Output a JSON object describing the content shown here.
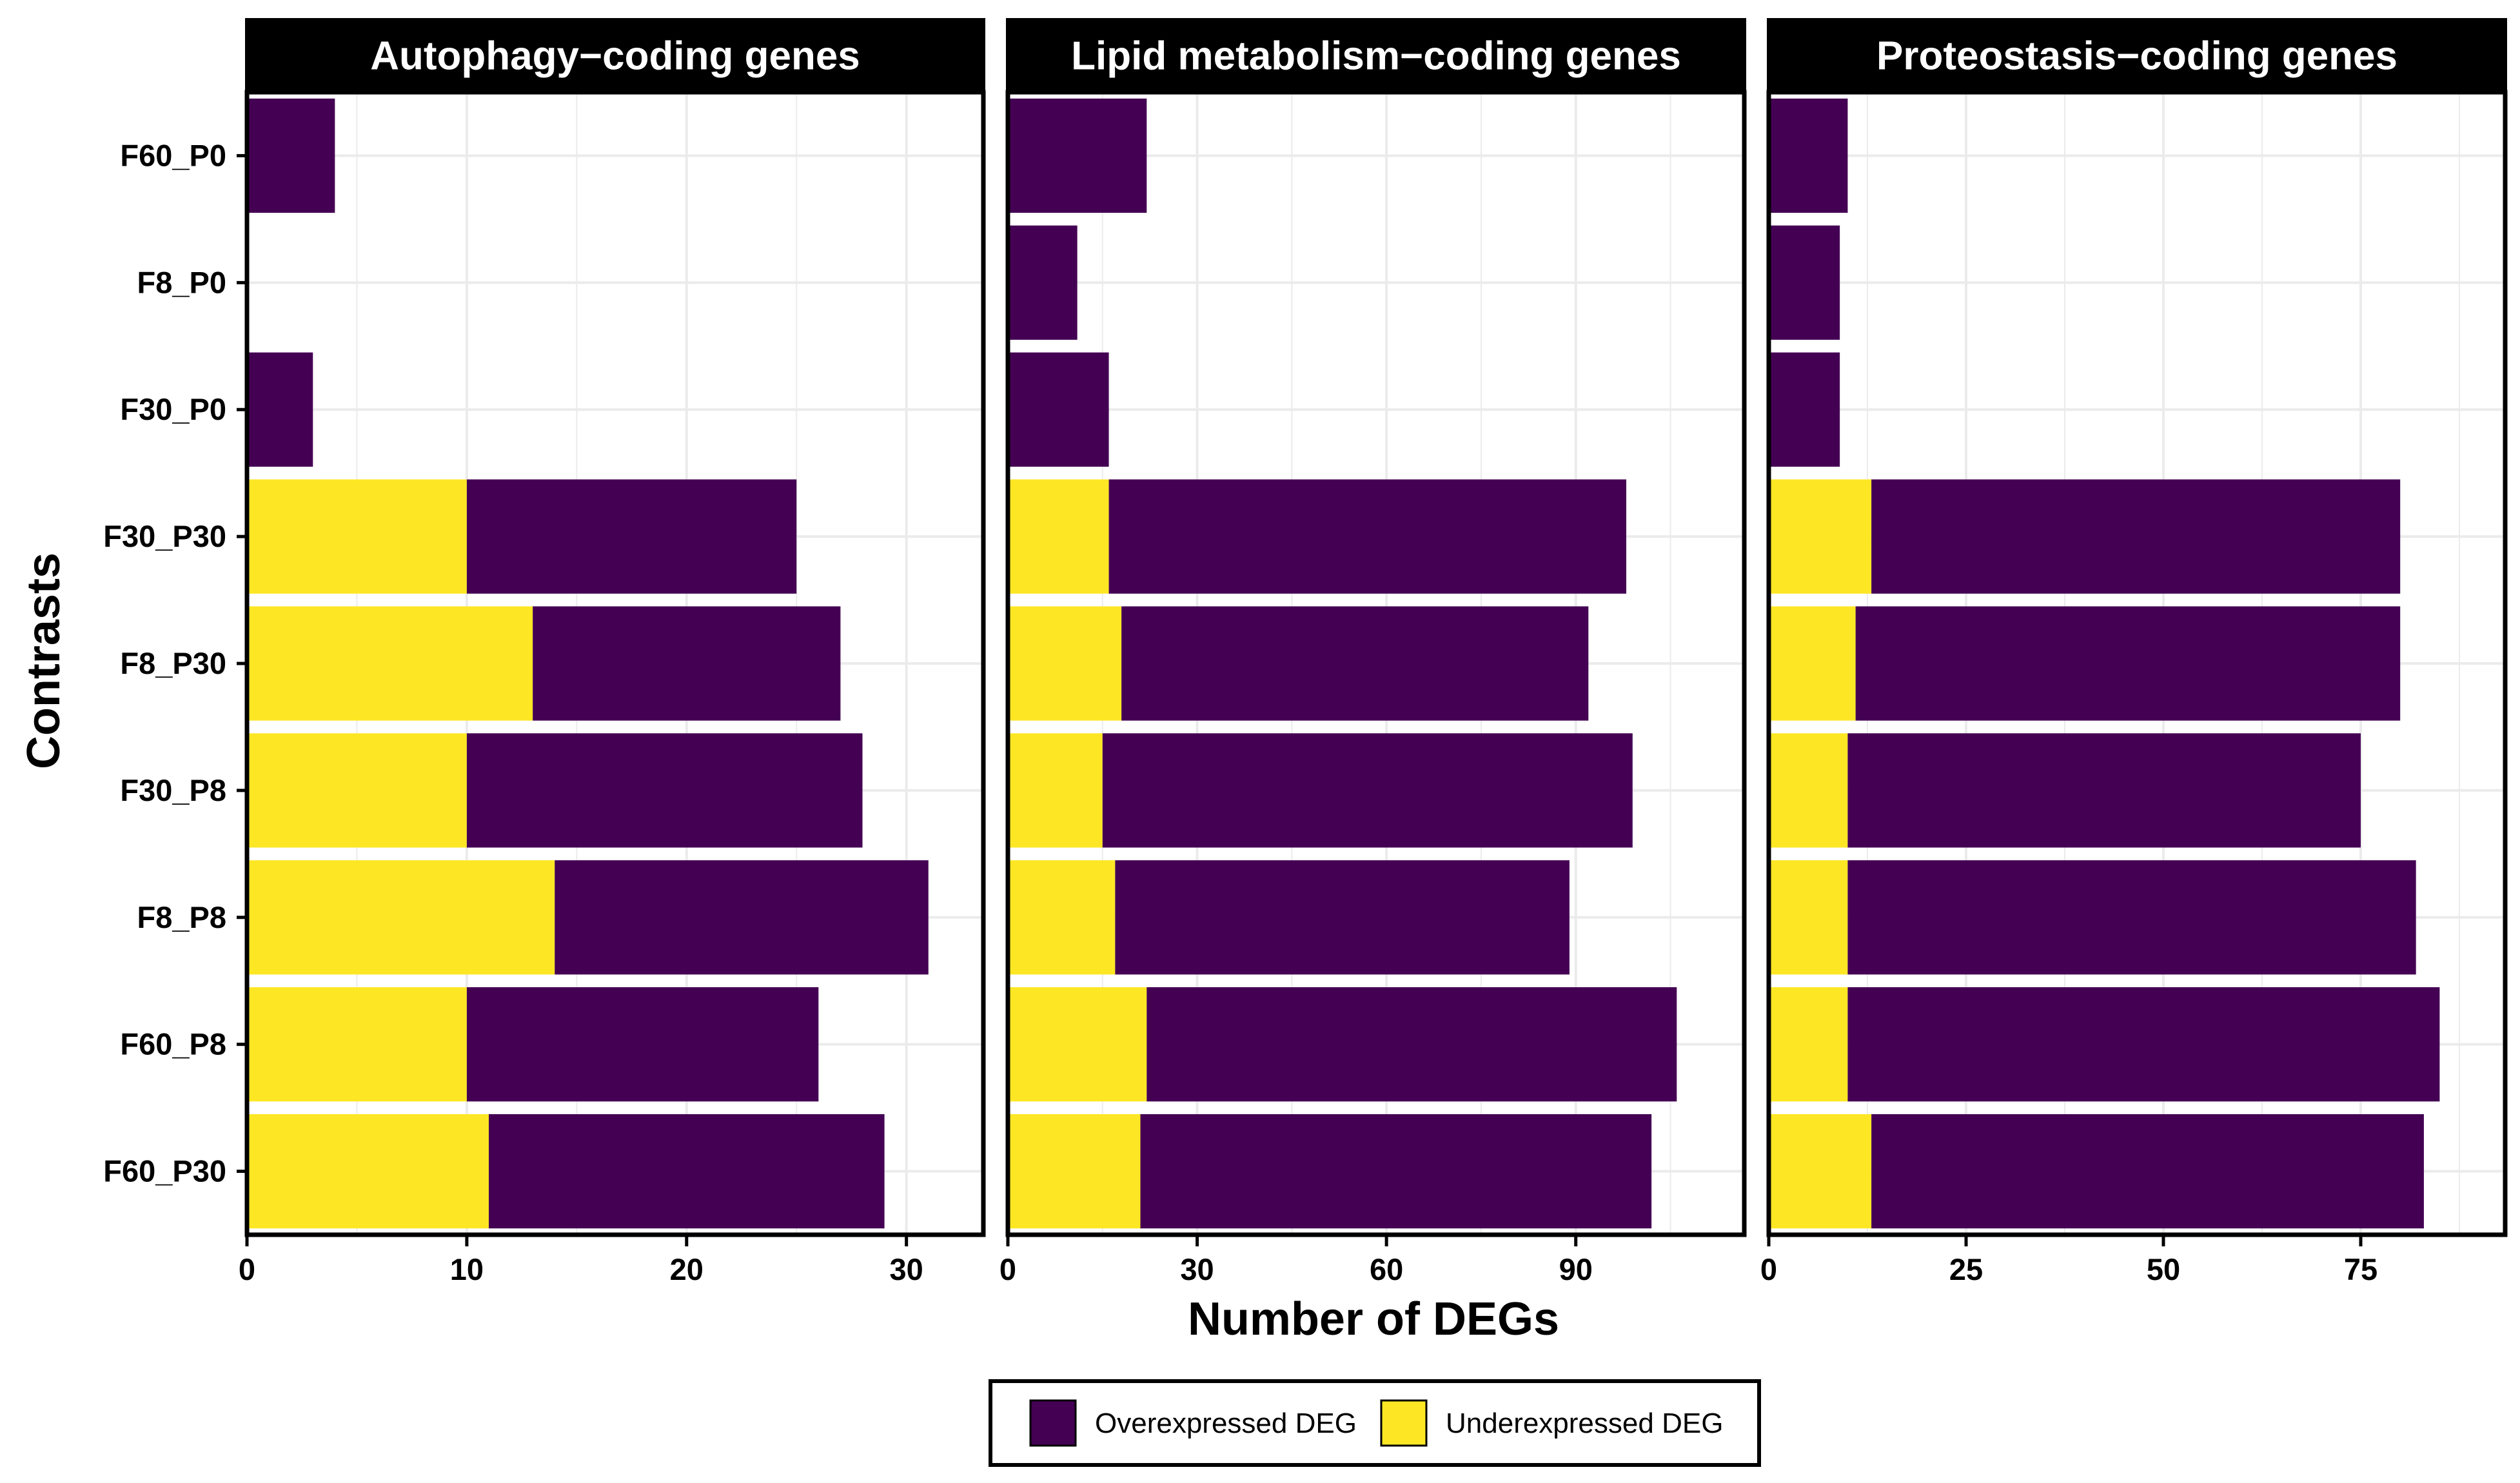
{
  "chart_data": {
    "type": "bar",
    "orientation": "horizontal",
    "stacked": true,
    "xlabel": "Number of DEGs",
    "ylabel": "Contrasts",
    "grid": true,
    "legend_position": "bottom",
    "categories": [
      "F60_P0",
      "F8_P0",
      "F30_P0",
      "F30_P30",
      "F8_P30",
      "F30_P8",
      "F8_P8",
      "F60_P8",
      "F60_P30"
    ],
    "legend": [
      {
        "name": "Overexpressed DEG",
        "color": "#440154"
      },
      {
        "name": "Underexpressed DEG",
        "color": "#FDE725"
      }
    ],
    "panels": [
      {
        "title": "Autophagy−coding genes",
        "xlim": [
          0,
          33.5
        ],
        "xticks": [
          0,
          10,
          20,
          30
        ],
        "series": [
          {
            "name": "Underexpressed DEG",
            "values": [
              0,
              0,
              0,
              10,
              13,
              10,
              14,
              10,
              11
            ]
          },
          {
            "name": "Overexpressed DEG",
            "values": [
              4,
              0,
              3,
              15,
              14,
              18,
              17,
              16,
              18
            ]
          }
        ]
      },
      {
        "title": "Lipid metabolism−coding genes",
        "xlim": [
          0,
          116.7
        ],
        "xticks": [
          0,
          30,
          60,
          90
        ],
        "series": [
          {
            "name": "Underexpressed DEG",
            "values": [
              0,
              0,
              0,
              16,
              18,
              15,
              17,
              22,
              21
            ]
          },
          {
            "name": "Overexpressed DEG",
            "values": [
              22,
              11,
              16,
              82,
              74,
              84,
              72,
              84,
              81
            ]
          }
        ]
      },
      {
        "title": "Proteostasis−coding genes",
        "xlim": [
          0,
          93.3
        ],
        "xticks": [
          0,
          25,
          50,
          75
        ],
        "series": [
          {
            "name": "Underexpressed DEG",
            "values": [
              0,
              0,
              0,
              13,
              11,
              10,
              10,
              10,
              13
            ]
          },
          {
            "name": "Overexpressed DEG",
            "values": [
              10,
              9,
              9,
              67,
              69,
              65,
              72,
              75,
              70
            ]
          }
        ]
      }
    ]
  }
}
